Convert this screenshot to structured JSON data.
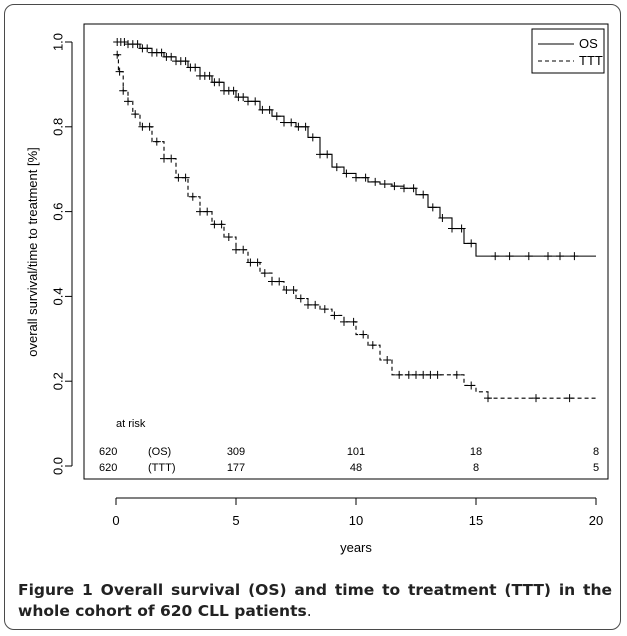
{
  "chart_data": {
    "type": "line",
    "title": "",
    "xlabel": "years",
    "ylabel": "overall survival/time to treatment [%]",
    "xlim": [
      0,
      20
    ],
    "ylim": [
      0,
      1
    ],
    "x_ticks": [
      "0",
      "5",
      "10",
      "15",
      "20"
    ],
    "y_ticks": [
      "0.0",
      "0.2",
      "0.4",
      "0.6",
      "0.8",
      "1.0"
    ],
    "legend": {
      "position": "top-right",
      "entries": [
        {
          "label": "OS",
          "style": "solid"
        },
        {
          "label": "TTT",
          "style": "dashed"
        }
      ]
    },
    "series": [
      {
        "name": "OS",
        "style": "solid",
        "color": "#000000",
        "points": [
          [
            0,
            1.0
          ],
          [
            0.5,
            0.995
          ],
          [
            1,
            0.985
          ],
          [
            1.5,
            0.975
          ],
          [
            2,
            0.965
          ],
          [
            2.5,
            0.955
          ],
          [
            3,
            0.94
          ],
          [
            3.5,
            0.92
          ],
          [
            4,
            0.905
          ],
          [
            4.5,
            0.885
          ],
          [
            5,
            0.87
          ],
          [
            5.5,
            0.86
          ],
          [
            6,
            0.84
          ],
          [
            6.5,
            0.825
          ],
          [
            7,
            0.81
          ],
          [
            7.5,
            0.8
          ],
          [
            8,
            0.775
          ],
          [
            8.5,
            0.735
          ],
          [
            9,
            0.705
          ],
          [
            9.5,
            0.69
          ],
          [
            10,
            0.68
          ],
          [
            10.5,
            0.67
          ],
          [
            11,
            0.665
          ],
          [
            11.5,
            0.66
          ],
          [
            12,
            0.655
          ],
          [
            12.5,
            0.64
          ],
          [
            13,
            0.61
          ],
          [
            13.5,
            0.585
          ],
          [
            14,
            0.56
          ],
          [
            14.5,
            0.525
          ],
          [
            15,
            0.495
          ],
          [
            15.5,
            0.495
          ],
          [
            17,
            0.495
          ],
          [
            20,
            0.495
          ]
        ]
      },
      {
        "name": "TTT",
        "style": "dashed",
        "color": "#000000",
        "points": [
          [
            0,
            0.97
          ],
          [
            0.1,
            0.93
          ],
          [
            0.3,
            0.885
          ],
          [
            0.5,
            0.86
          ],
          [
            0.7,
            0.83
          ],
          [
            1,
            0.8
          ],
          [
            1.5,
            0.765
          ],
          [
            2,
            0.725
          ],
          [
            2.5,
            0.68
          ],
          [
            3,
            0.635
          ],
          [
            3.5,
            0.6
          ],
          [
            4,
            0.57
          ],
          [
            4.5,
            0.54
          ],
          [
            5,
            0.51
          ],
          [
            5.5,
            0.48
          ],
          [
            6,
            0.455
          ],
          [
            6.5,
            0.435
          ],
          [
            7,
            0.415
          ],
          [
            7.5,
            0.395
          ],
          [
            8,
            0.38
          ],
          [
            8.5,
            0.37
          ],
          [
            9,
            0.355
          ],
          [
            9.5,
            0.34
          ],
          [
            10,
            0.31
          ],
          [
            10.5,
            0.285
          ],
          [
            11,
            0.25
          ],
          [
            11.5,
            0.215
          ],
          [
            12,
            0.215
          ],
          [
            14,
            0.215
          ],
          [
            14.5,
            0.19
          ],
          [
            15,
            0.175
          ],
          [
            15.5,
            0.16
          ],
          [
            17,
            0.16
          ],
          [
            20,
            0.16
          ]
        ]
      }
    ],
    "censor_marks": {
      "OS": [
        0.05,
        0.2,
        0.35,
        0.5,
        0.7,
        0.9,
        1.1,
        1.3,
        1.5,
        1.7,
        1.9,
        2.1,
        2.3,
        2.5,
        2.7,
        2.9,
        3.1,
        3.3,
        3.5,
        3.7,
        3.9,
        4.1,
        4.3,
        4.5,
        4.7,
        4.9,
        5.1,
        5.3,
        5.5,
        5.8,
        6.1,
        6.4,
        6.7,
        7.0,
        7.3,
        7.6,
        7.9,
        8.2,
        8.5,
        8.8,
        9.2,
        9.6,
        10.0,
        10.4,
        10.8,
        11.2,
        11.6,
        12.0,
        12.4,
        12.8,
        13.2,
        13.6,
        14.0,
        14.4,
        14.8,
        15.8,
        16.4,
        17.2,
        18.0,
        18.5,
        19.1
      ],
      "TTT": [
        0.05,
        0.15,
        0.3,
        0.5,
        0.8,
        1.1,
        1.4,
        1.7,
        2.0,
        2.3,
        2.6,
        2.9,
        3.2,
        3.5,
        3.8,
        4.1,
        4.4,
        4.7,
        5.0,
        5.3,
        5.6,
        5.9,
        6.2,
        6.5,
        6.8,
        7.1,
        7.4,
        7.7,
        8.0,
        8.3,
        8.7,
        9.1,
        9.5,
        9.9,
        10.3,
        10.7,
        11.3,
        11.8,
        12.2,
        12.5,
        12.8,
        13.1,
        13.4,
        14.2,
        14.8,
        15.5,
        17.5,
        18.9
      ]
    },
    "at_risk": {
      "label": "at risk",
      "rows": [
        {
          "total": "620",
          "label": "(OS)",
          "values": [
            "309",
            "101",
            "18",
            "8"
          ]
        },
        {
          "total": "620",
          "label": "(TTT)",
          "values": [
            "177",
            "48",
            "8",
            "5"
          ]
        }
      ]
    }
  },
  "caption": {
    "bold": "Figure 1 Overall survival (OS) and time to treatment (TTT) in the whole cohort of 620 CLL patients",
    "rest": "."
  }
}
